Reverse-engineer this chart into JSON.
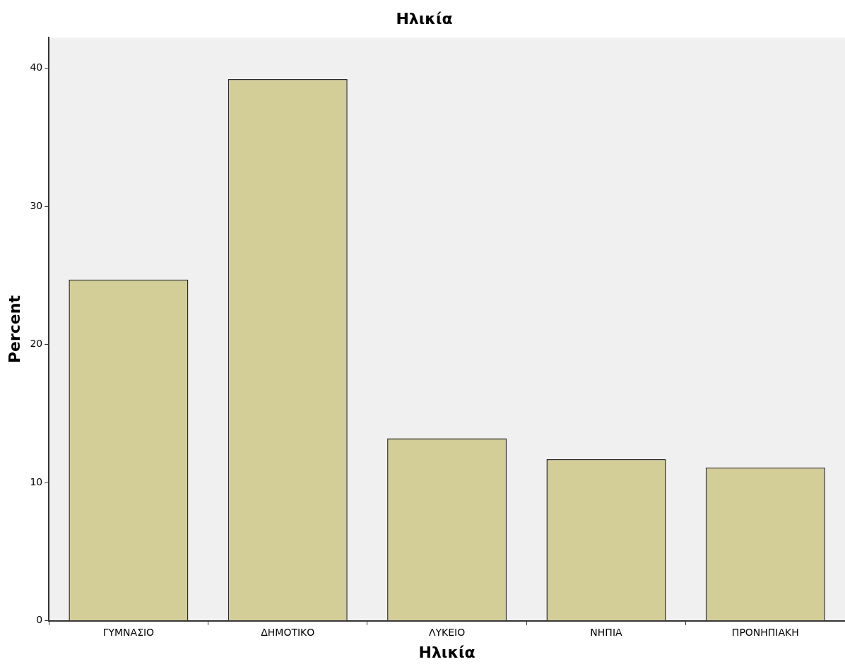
{
  "chart_data": {
    "type": "bar",
    "title": "Ηλικία",
    "xlabel": "Ηλικία",
    "ylabel": "Percent",
    "categories": [
      "ΓΥΜΝΑΣΙΟ",
      "ΔΗΜΟΤΙΚΟ",
      "ΛΥΚΕΙΟ",
      "ΝΗΠΙΑ",
      "ΠΡΟΝΗΠΙΑΚΗ"
    ],
    "values": [
      24.7,
      39.2,
      13.2,
      11.7,
      11.1
    ],
    "color": "#d3ce98",
    "ylim": [
      0,
      42.2
    ],
    "yticks": [
      0,
      10,
      20,
      30,
      40
    ],
    "grid": false,
    "legend": false
  }
}
